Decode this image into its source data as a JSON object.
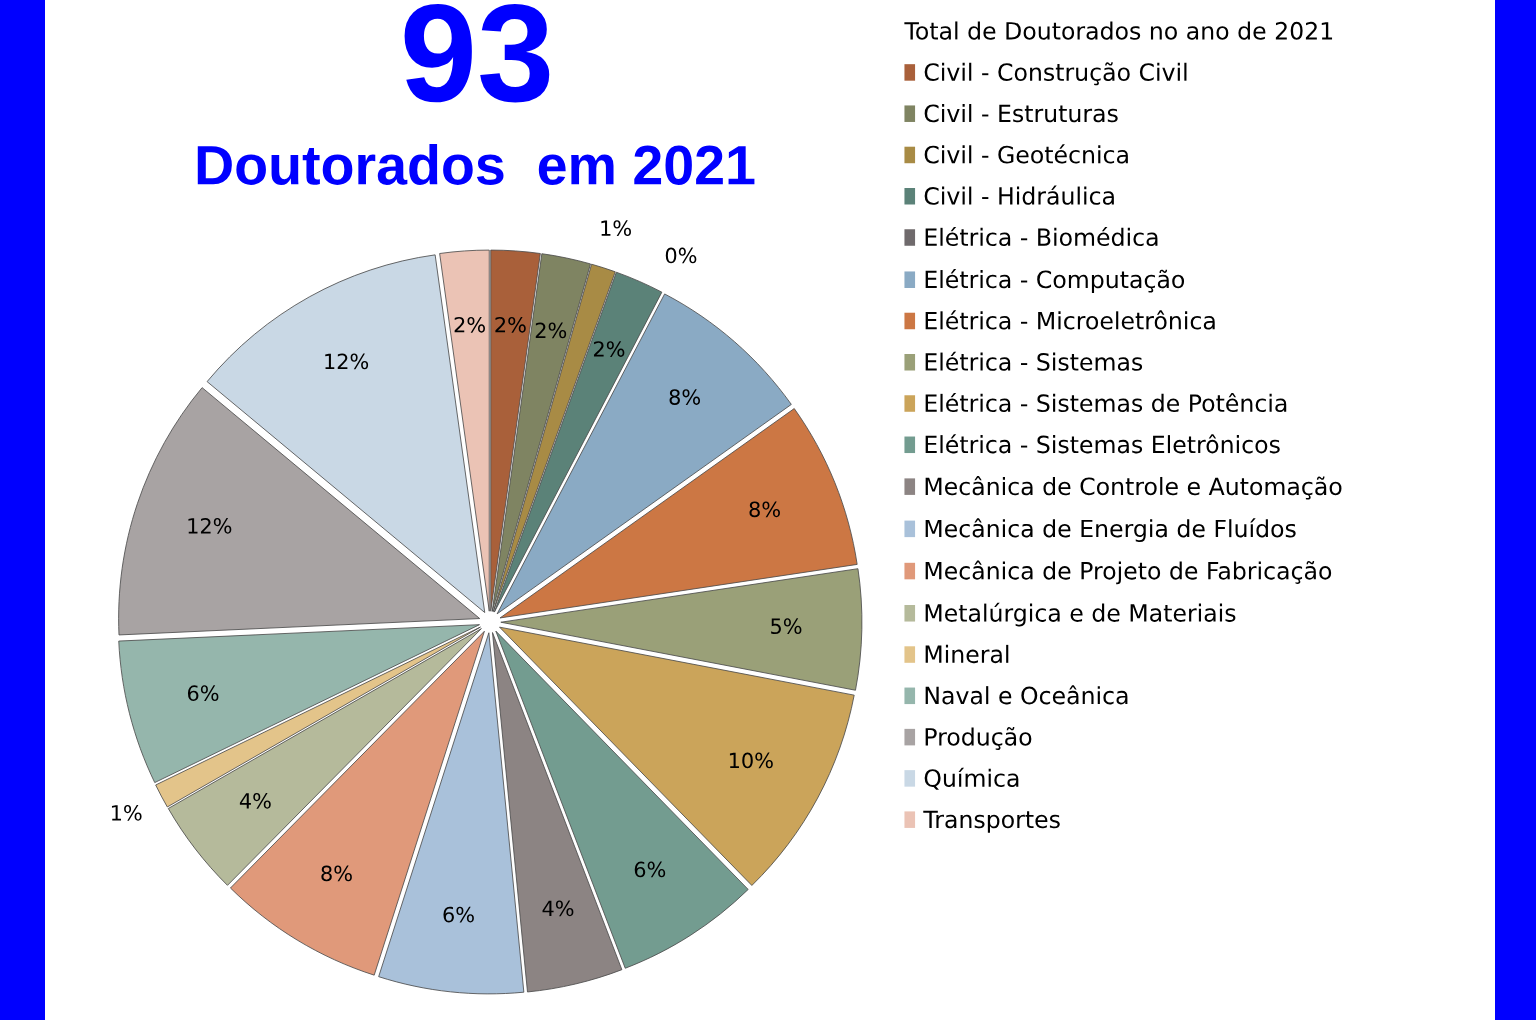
{
  "chart_data": {
    "type": "pie",
    "title": "93",
    "subtitle": "Doutorados  em 2021",
    "legend_title": "Total de Doutorados no ano de 2021",
    "categories": [
      "Civil - Construção Civil",
      "Civil - Estruturas",
      "Civil - Geotécnica",
      "Civil - Hidráulica",
      "Elétrica - Biomédica",
      "Elétrica - Computação",
      "Elétrica - Microeletrônica",
      "Elétrica - Sistemas",
      "Elétrica - Sistemas de Potência",
      "Elétrica - Sistemas Eletrônicos",
      "Mecânica de Controle e Automação",
      "Mecânica de Energia de Fluídos",
      "Mecânica de Projeto de Fabricação",
      "Metalúrgica e de Materiais",
      "Mineral",
      "Naval e Oceânica",
      "Produção",
      "Química",
      "Transportes"
    ],
    "values": [
      2.2,
      2.2,
      1.1,
      2.2,
      0,
      7.5,
      7.5,
      5.4,
      9.7,
      6.5,
      4.3,
      6.5,
      7.5,
      4.3,
      1.1,
      6.5,
      11.8,
      11.8,
      2.2
    ],
    "value_labels": [
      "2%",
      "2%",
      "1%",
      "2%",
      "0%",
      "8%",
      "8%",
      "5%",
      "10%",
      "6%",
      "4%",
      "6%",
      "8%",
      "4%",
      "1%",
      "6%",
      "12%",
      "12%",
      "2%"
    ],
    "colors": [
      "#a9603a",
      "#7f8462",
      "#a88b45",
      "#5b8278",
      "#6f6a6c",
      "#8aaac4",
      "#cc7744",
      "#9aa078",
      "#cba45a",
      "#739c90",
      "#8c8483",
      "#a9c1da",
      "#e0997a",
      "#b5ba9b",
      "#e3c48a",
      "#95b6ac",
      "#a8a3a3",
      "#c9d8e5",
      "#ebc3b5"
    ],
    "legend": "right"
  }
}
